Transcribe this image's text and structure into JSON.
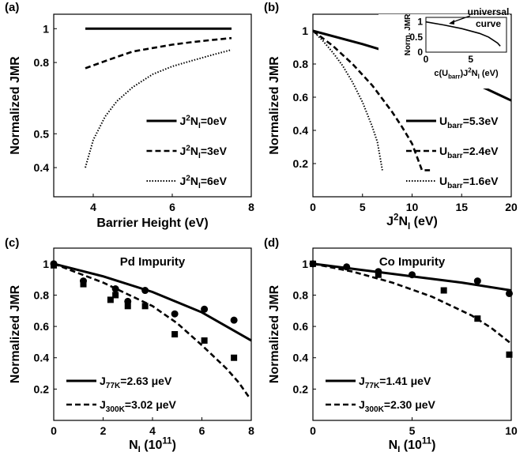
{
  "chart_data": [
    {
      "id": "a",
      "panel_label": "(a)",
      "type": "line",
      "title": "",
      "xlabel": "Barrier Height (eV)",
      "ylabel": "Normalized JMR",
      "xlim": [
        3,
        8
      ],
      "ylim": [
        0.33,
        1.1
      ],
      "xscale": "linear",
      "yscale": "log",
      "xticks": [
        4,
        6,
        8
      ],
      "xtick_labels": [
        "4",
        "6",
        "8"
      ],
      "yticks": [
        0.4,
        0.5,
        0.8,
        1.0
      ],
      "ytick_labels": [
        "0.4",
        "0.5",
        "0.8",
        "1"
      ],
      "legend_position": "lower-right",
      "series": [
        {
          "label_parts": {
            "pre": "J",
            "sup": "2",
            "mid": "N",
            "sub": "I",
            "post": "=0eV"
          },
          "style": "solid",
          "x": [
            3.8,
            7.5
          ],
          "y": [
            1.0,
            1.0
          ]
        },
        {
          "label_parts": {
            "pre": "J",
            "sup": "2",
            "mid": "N",
            "sub": "I",
            "post": "=3eV"
          },
          "style": "dashed",
          "x": [
            3.8,
            4.2,
            4.6,
            5.0,
            5.5,
            6.0,
            6.5,
            7.0,
            7.5
          ],
          "y": [
            0.77,
            0.8,
            0.83,
            0.86,
            0.88,
            0.9,
            0.915,
            0.928,
            0.94
          ]
        },
        {
          "label_parts": {
            "pre": "J",
            "sup": "2",
            "mid": "N",
            "sub": "I",
            "post": "=6eV"
          },
          "style": "dotted",
          "x": [
            3.8,
            4.0,
            4.3,
            4.6,
            5.0,
            5.5,
            6.0,
            6.5,
            7.0,
            7.5
          ],
          "y": [
            0.4,
            0.48,
            0.56,
            0.62,
            0.68,
            0.74,
            0.78,
            0.81,
            0.84,
            0.87
          ]
        }
      ]
    },
    {
      "id": "b",
      "panel_label": "(b)",
      "type": "line",
      "title": "",
      "xlabel_parts": {
        "pre": "J",
        "sup": "2",
        "mid": "N",
        "sub": "I",
        "post": " (eV)"
      },
      "ylabel": "Normalized JMR",
      "xlim": [
        0,
        20
      ],
      "ylim": [
        0,
        1.1
      ],
      "xticks": [
        0,
        5,
        10,
        15,
        20
      ],
      "xtick_labels": [
        "0",
        "5",
        "10",
        "15",
        "20"
      ],
      "yticks": [
        0.2,
        0.4,
        0.6,
        0.8,
        1.0
      ],
      "ytick_labels": [
        "0.2",
        "0.4",
        "0.6",
        "0.8",
        "1"
      ],
      "legend_position": "lower-right",
      "series": [
        {
          "label_parts": {
            "pre": "U",
            "sub": "barr",
            "post": "=5.3eV"
          },
          "style": "solid",
          "x": [
            0,
            5,
            10,
            15,
            20
          ],
          "y": [
            1.0,
            0.92,
            0.83,
            0.72,
            0.58
          ]
        },
        {
          "label_parts": {
            "pre": "U",
            "sub": "barr",
            "post": "=2.4eV"
          },
          "style": "dashed",
          "x": [
            0,
            2,
            4,
            6,
            8,
            9,
            10,
            11,
            11.8
          ],
          "y": [
            1.0,
            0.91,
            0.8,
            0.67,
            0.51,
            0.42,
            0.32,
            0.16,
            0.16
          ]
        },
        {
          "label_parts": {
            "pre": "U",
            "sub": "barr",
            "post": "=1.6eV"
          },
          "style": "dotted",
          "x": [
            0,
            1,
            2,
            3,
            4,
            5,
            6,
            6.5,
            7
          ],
          "y": [
            1.0,
            0.94,
            0.87,
            0.79,
            0.69,
            0.57,
            0.42,
            0.33,
            0.16
          ]
        }
      ],
      "inset": {
        "ylabel": "Norm. JMR",
        "xlabel_parts": {
          "pre": "c(U",
          "sub": "barr",
          "mid": ")J",
          "sup": "2",
          "mid2": "N",
          "sub2": "I",
          "post": " (eV)"
        },
        "xlim": [
          0,
          9
        ],
        "ylim": [
          0,
          1.15
        ],
        "xticks": [
          0,
          5
        ],
        "xtick_labels": [
          "0",
          "5"
        ],
        "yticks": [
          0,
          0.5,
          1
        ],
        "ytick_labels": [
          "0",
          "0.5",
          "1"
        ],
        "annotation": [
          "universal",
          "curve"
        ],
        "curve": {
          "x": [
            0,
            2,
            4,
            6,
            7,
            8,
            8.3
          ],
          "y": [
            1.0,
            0.9,
            0.78,
            0.62,
            0.5,
            0.3,
            0.2
          ]
        }
      }
    },
    {
      "id": "c",
      "panel_label": "(c)",
      "type": "line",
      "title": "Pd Impurity",
      "xlabel_parts": {
        "pre": "N",
        "sub": "I",
        "post": " (10",
        "sup": "11",
        "post2": ")"
      },
      "ylabel": "Normalized JMR",
      "xlim": [
        0,
        8
      ],
      "ylim": [
        0,
        1.1
      ],
      "xticks": [
        0,
        2,
        4,
        6,
        8
      ],
      "xtick_labels": [
        "0",
        "2",
        "4",
        "6",
        "8"
      ],
      "yticks": [
        0.2,
        0.4,
        0.6,
        0.8,
        1.0
      ],
      "ytick_labels": [
        "0.2",
        "0.4",
        "0.6",
        "0.8",
        "1"
      ],
      "legend_position": "lower-left",
      "series": [
        {
          "label_parts": {
            "pre": "J",
            "sub": "77K",
            "post": "=2.63 μeV"
          },
          "style": "solid",
          "x": [
            0,
            2,
            4,
            6,
            8
          ],
          "y": [
            1.0,
            0.92,
            0.82,
            0.69,
            0.51
          ]
        },
        {
          "label_parts": {
            "pre": "J",
            "sub": "300K",
            "post": "=3.02 μeV"
          },
          "style": "dashed",
          "x": [
            0,
            2,
            4,
            5,
            6,
            7,
            7.5,
            7.9
          ],
          "y": [
            1.0,
            0.88,
            0.73,
            0.62,
            0.48,
            0.33,
            0.24,
            0.15
          ]
        }
      ],
      "points": [
        {
          "marker": "circle",
          "x": [
            0,
            1.2,
            2.5,
            3,
            3.7,
            4.9,
            6.1,
            7.3
          ],
          "y": [
            1.0,
            0.89,
            0.84,
            0.76,
            0.83,
            0.68,
            0.71,
            0.64
          ]
        },
        {
          "marker": "square",
          "x": [
            0,
            1.2,
            2.3,
            2.5,
            3.0,
            3.7,
            4.9,
            6.1,
            7.3
          ],
          "y": [
            0.99,
            0.87,
            0.77,
            0.8,
            0.73,
            0.73,
            0.55,
            0.51,
            0.4
          ]
        }
      ]
    },
    {
      "id": "d",
      "panel_label": "(d)",
      "type": "line",
      "title": "Co Impurity",
      "xlabel_parts": {
        "pre": "N",
        "sub": "I",
        "post": " (10",
        "sup": "11",
        "post2": ")"
      },
      "ylabel": "Normalized JMR",
      "xlim": [
        0,
        10
      ],
      "ylim": [
        0,
        1.1
      ],
      "xticks": [
        0,
        5,
        10
      ],
      "xtick_labels": [
        "0",
        "5",
        "10"
      ],
      "yticks": [
        0.2,
        0.4,
        0.6,
        0.8,
        1.0
      ],
      "ytick_labels": [
        "0.2",
        "0.4",
        "0.6",
        "0.8",
        "1"
      ],
      "legend_position": "lower-left",
      "series": [
        {
          "label_parts": {
            "pre": "J",
            "sub": "77K",
            "post": "=1.41 μeV"
          },
          "style": "solid",
          "x": [
            0,
            2.5,
            5,
            7.5,
            10
          ],
          "y": [
            1.0,
            0.96,
            0.92,
            0.88,
            0.83
          ]
        },
        {
          "label_parts": {
            "pre": "J",
            "sub": "300K",
            "post": "=2.30 μeV"
          },
          "style": "dashed",
          "x": [
            0,
            2,
            4,
            6,
            8,
            9,
            10
          ],
          "y": [
            1.0,
            0.95,
            0.88,
            0.79,
            0.67,
            0.59,
            0.49
          ]
        }
      ],
      "points": [
        {
          "marker": "circle",
          "x": [
            0,
            1.7,
            3.3,
            5,
            8.3,
            9.9
          ],
          "y": [
            1.0,
            0.98,
            0.95,
            0.93,
            0.89,
            0.81
          ]
        },
        {
          "marker": "square",
          "x": [
            0,
            3.3,
            6.6,
            8.3,
            9.9
          ],
          "y": [
            1.0,
            0.93,
            0.83,
            0.65,
            0.42
          ]
        }
      ]
    }
  ]
}
